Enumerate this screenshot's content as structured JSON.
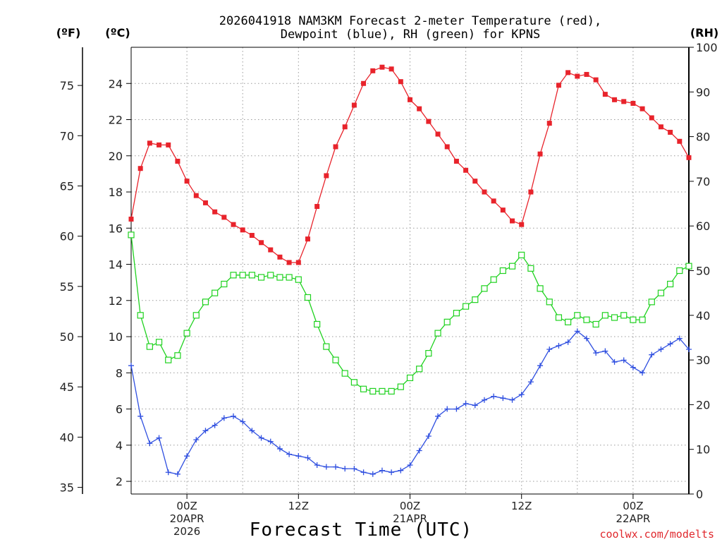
{
  "title_line1": "2026041918 NAM3KM Forecast 2-meter Temperature (red),",
  "title_line2": "Dewpoint (blue), RH (green) for KPNS",
  "axis_units": {
    "f": "(ºF)",
    "c": "(ºC)",
    "rh": "(RH)"
  },
  "xlabel": "Forecast Time (UTC)",
  "credit": "coolwx.com/modelts",
  "colors": {
    "temperature": "#e8232b",
    "dewpoint": "#2f4fe0",
    "rh": "#1fd21f"
  },
  "chart_data": {
    "type": "line",
    "title": "2026041918 NAM3KM Forecast 2-meter Temperature (red), Dewpoint (blue), RH (green) for KPNS",
    "xlabel": "Forecast Time (UTC)",
    "x_hours": [
      0,
      1,
      2,
      3,
      4,
      5,
      6,
      7,
      8,
      9,
      10,
      11,
      12,
      13,
      14,
      15,
      16,
      17,
      18,
      19,
      20,
      21,
      22,
      23,
      24,
      25,
      26,
      27,
      28,
      29,
      30,
      31,
      32,
      33,
      34,
      35,
      36,
      37,
      38,
      39,
      40,
      41,
      42,
      43,
      44,
      45,
      46,
      47,
      48,
      49,
      50,
      51,
      52,
      53,
      54,
      55,
      56,
      57,
      58,
      59,
      60
    ],
    "x_ticks": [
      {
        "hour": 6,
        "lines": [
          "00Z",
          "20APR",
          "2026"
        ]
      },
      {
        "hour": 18,
        "lines": [
          "12Z"
        ]
      },
      {
        "hour": 30,
        "lines": [
          "00Z",
          "21APR"
        ]
      },
      {
        "hour": 42,
        "lines": [
          "12Z"
        ]
      },
      {
        "hour": 54,
        "lines": [
          "00Z",
          "22APR"
        ]
      }
    ],
    "xlim": [
      0,
      60
    ],
    "y_left_c": {
      "label": "(ºC)",
      "ylim": [
        1.3,
        26.0
      ],
      "ticks": [
        2,
        4,
        6,
        8,
        10,
        12,
        14,
        16,
        18,
        20,
        22,
        24
      ]
    },
    "y_left_f": {
      "label": "(ºF)",
      "ticks": [
        35,
        40,
        45,
        50,
        55,
        60,
        65,
        70,
        75
      ]
    },
    "y_right_rh": {
      "label": "(RH)",
      "ylim": [
        0,
        100
      ],
      "ticks": [
        0,
        10,
        20,
        30,
        40,
        50,
        60,
        70,
        80,
        90,
        100
      ]
    },
    "series": [
      {
        "name": "2-meter Temperature",
        "axis": "c",
        "color": "#e8232b",
        "marker": "filled-square",
        "values": [
          16.5,
          19.3,
          20.7,
          20.6,
          20.6,
          19.7,
          18.6,
          17.8,
          17.4,
          16.9,
          16.6,
          16.2,
          15.9,
          15.6,
          15.2,
          14.8,
          14.4,
          14.1,
          14.1,
          15.4,
          17.2,
          18.9,
          20.5,
          21.6,
          22.8,
          24.0,
          24.7,
          24.9,
          24.8,
          24.1,
          23.1,
          22.6,
          21.9,
          21.2,
          20.5,
          19.7,
          19.2,
          18.6,
          18.0,
          17.5,
          17.0,
          16.4,
          16.2,
          18.0,
          20.1,
          21.8,
          23.9,
          24.6,
          24.4,
          24.5,
          24.2,
          23.4,
          23.1,
          23.0,
          22.9,
          22.6,
          22.1,
          21.6,
          21.3,
          20.8,
          19.9
        ]
      },
      {
        "name": "Dewpoint",
        "axis": "c",
        "color": "#2f4fe0",
        "marker": "plus",
        "values": [
          8.4,
          5.6,
          4.1,
          4.4,
          2.5,
          2.4,
          3.4,
          4.3,
          4.8,
          5.1,
          5.5,
          5.6,
          5.3,
          4.8,
          4.4,
          4.2,
          3.8,
          3.5,
          3.4,
          3.3,
          2.9,
          2.8,
          2.8,
          2.7,
          2.7,
          2.5,
          2.4,
          2.6,
          2.5,
          2.6,
          2.9,
          3.7,
          4.5,
          5.6,
          6.0,
          6.0,
          6.3,
          6.2,
          6.5,
          6.7,
          6.6,
          6.5,
          6.8,
          7.5,
          8.4,
          9.3,
          9.5,
          9.7,
          10.3,
          9.9,
          9.1,
          9.2,
          8.6,
          8.7,
          8.3,
          8.0,
          9.0,
          9.3,
          9.6,
          9.9,
          9.3
        ]
      },
      {
        "name": "RH",
        "axis": "rh",
        "color": "#1fd21f",
        "marker": "open-square",
        "values": [
          58,
          40,
          33,
          34,
          30,
          31,
          36,
          40,
          43,
          45,
          47,
          49,
          49,
          49,
          48.5,
          49,
          48.5,
          48.5,
          48,
          44,
          38,
          33,
          30,
          27,
          25,
          23.5,
          23,
          23,
          23,
          24,
          26,
          28,
          31.5,
          36,
          38.5,
          40.5,
          42,
          43.5,
          46,
          48,
          50,
          51,
          53.5,
          50.5,
          46,
          43,
          39.5,
          38.5,
          40,
          39,
          38,
          40,
          39.5,
          40,
          39,
          39,
          43,
          45,
          47,
          50,
          51
        ]
      }
    ]
  }
}
